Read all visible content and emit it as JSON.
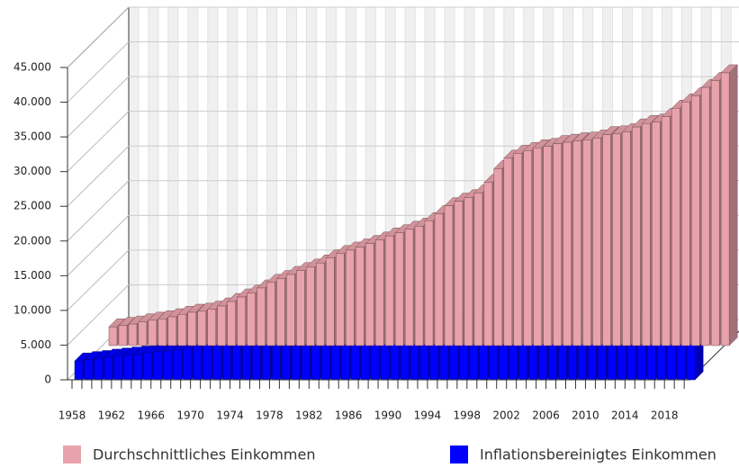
{
  "chart_data": {
    "type": "bar3d",
    "categories": [
      "1958",
      null,
      null,
      null,
      "1962",
      null,
      null,
      null,
      "1966",
      null,
      null,
      null,
      "1970",
      null,
      null,
      null,
      "1974",
      null,
      null,
      null,
      "1978",
      null,
      null,
      null,
      "1982",
      null,
      null,
      null,
      "1986",
      null,
      null,
      null,
      "1990",
      null,
      null,
      null,
      "1994",
      null,
      null,
      null,
      "1998",
      null,
      null,
      null,
      "2002",
      null,
      null,
      null,
      "2006",
      null,
      null,
      null,
      "2010",
      null,
      null,
      null,
      "2014",
      null,
      null,
      null,
      "2018",
      null,
      null
    ],
    "series": [
      {
        "name": "Durchschnittliches Einkommen",
        "color": "#e8a2ab",
        "values": [
          2700,
          2900,
          3100,
          3400,
          3650,
          3850,
          4150,
          4500,
          4800,
          4950,
          5250,
          5700,
          6350,
          7000,
          7550,
          8300,
          9100,
          9650,
          10250,
          10800,
          11300,
          11900,
          12650,
          13250,
          13750,
          14200,
          14700,
          15200,
          15800,
          16250,
          16750,
          17200,
          18000,
          19000,
          20150,
          20800,
          21300,
          22000,
          23500,
          25500,
          27000,
          27700,
          28100,
          28500,
          28700,
          29100,
          29300,
          29500,
          29600,
          29900,
          30400,
          30500,
          30800,
          31500,
          32000,
          32200,
          33000,
          34200,
          35100,
          36000,
          37200,
          38200,
          39300
        ]
      },
      {
        "name": "Inflationsbereinigtes Einkommen",
        "color": "#0000ff",
        "values": [
          2700,
          2900,
          3050,
          3250,
          3400,
          3550,
          3700,
          3900,
          4050,
          4150,
          4300,
          4550,
          4900,
          5200,
          5400,
          5700,
          6000,
          6150,
          6350,
          6500,
          6700,
          6850,
          7000,
          7100,
          7200,
          7250,
          7300,
          7350,
          7500,
          7650,
          7700,
          7750,
          7900,
          8050,
          8200,
          8300,
          8350,
          8400,
          8300,
          8350,
          8400,
          8450,
          8450,
          8400,
          8400,
          8350,
          8300,
          8250,
          8200,
          8150,
          8100,
          8100,
          8150,
          8200,
          8250,
          8300,
          8400,
          8550,
          8650,
          8750,
          8850,
          9000,
          9100
        ]
      }
    ],
    "ylim": [
      0,
      45000
    ],
    "yticks": [
      0,
      {
        "value": 5000,
        "label": "5.000"
      },
      {
        "value": 10000,
        "label": "10.000"
      },
      {
        "value": 15000,
        "label": "15.000"
      },
      {
        "value": 20000,
        "label": "20.000"
      },
      {
        "value": 25000,
        "label": "25.000"
      },
      {
        "value": 30000,
        "label": "30.000"
      },
      {
        "value": 35000,
        "label": "35.000"
      },
      {
        "value": 40000,
        "label": "40.000"
      },
      {
        "value": 45000,
        "label": "45.000"
      }
    ],
    "grid": true
  }
}
